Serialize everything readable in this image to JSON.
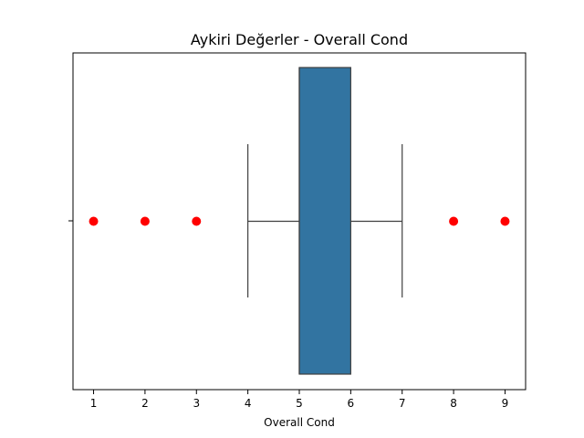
{
  "chart_data": {
    "type": "box",
    "title": "Aykiri Değerler - Overall Cond",
    "xlabel": "Overall Cond",
    "ylabel": "",
    "orientation": "horizontal",
    "xlim": [
      0.6,
      9.4
    ],
    "xticks": [
      1,
      2,
      3,
      4,
      5,
      6,
      7,
      8,
      9
    ],
    "xtick_labels": [
      "1",
      "2",
      "3",
      "4",
      "5",
      "6",
      "7",
      "8",
      "9"
    ],
    "grid": false,
    "box": {
      "whisker_low": 4,
      "q1": 5,
      "median": 5,
      "q3": 6,
      "whisker_high": 7,
      "color": "#3274a1",
      "whisker_color": "#3f3f3f"
    },
    "outliers": {
      "values": [
        1,
        2,
        3,
        8,
        9
      ],
      "color": "#ff0000"
    }
  }
}
